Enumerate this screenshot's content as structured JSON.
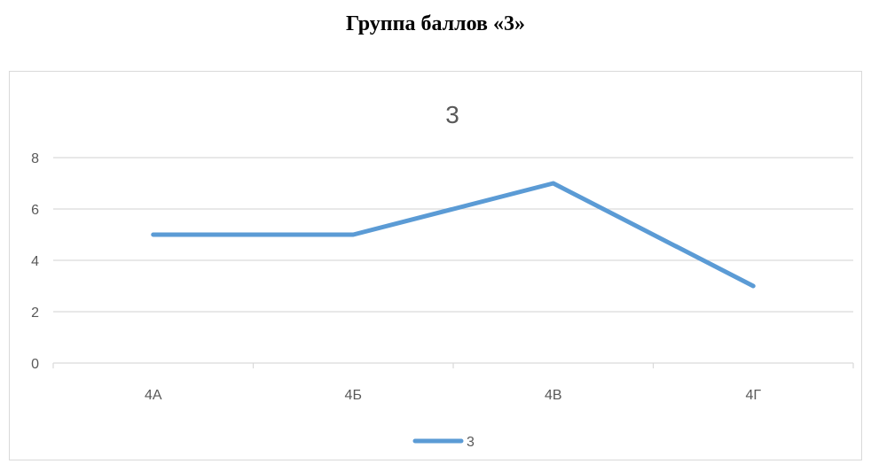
{
  "heading": "Группа баллов «3»",
  "chart_data": {
    "type": "line",
    "title": "3",
    "categories": [
      "4А",
      "4Б",
      "4В",
      "4Г"
    ],
    "series": [
      {
        "name": "3",
        "values": [
          5,
          5,
          7,
          3
        ],
        "color": "#5b9bd5"
      }
    ],
    "xlabel": "",
    "ylabel": "",
    "ylim": [
      0,
      8
    ],
    "yticks": [
      0,
      2,
      4,
      6,
      8
    ],
    "grid": true,
    "legend": "bottom",
    "gridline_color": "#d9d9d9"
  }
}
